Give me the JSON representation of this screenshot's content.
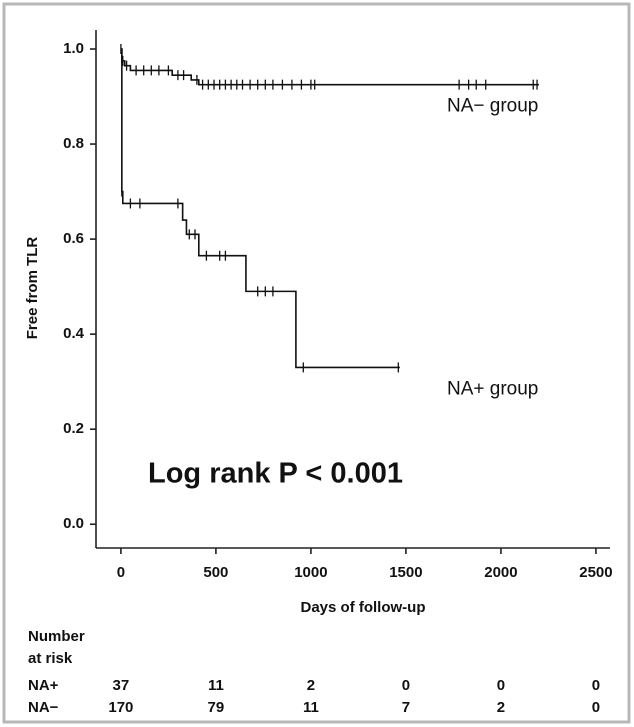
{
  "chart_data": {
    "type": "step",
    "xlabel": "Days of follow-up",
    "ylabel": "Free from TLR",
    "xlim": [
      -131,
      2574
    ],
    "xticks": [
      0,
      500,
      1000,
      1500,
      2000,
      2500
    ],
    "ylim": [
      -0.05,
      1.04
    ],
    "yticks": [
      {
        "value": 0,
        "label": "0.0"
      },
      0.2,
      0.4,
      0.6,
      0.8,
      {
        "value": 1,
        "label": "1.0"
      }
    ],
    "series": [
      {
        "name": "NA− group",
        "color": "#111111",
        "x": [
          0,
          5,
          20,
          50,
          270,
          370,
          410,
          2200
        ],
        "values": [
          1.0,
          0.975,
          0.965,
          0.955,
          0.945,
          0.935,
          0.925,
          0.925
        ],
        "censor_x": [
          0,
          10,
          30,
          80,
          120,
          160,
          200,
          250,
          300,
          330,
          400,
          430,
          460,
          490,
          520,
          550,
          580,
          610,
          640,
          680,
          720,
          760,
          800,
          850,
          900,
          950,
          1000,
          1020,
          1780,
          1830,
          1870,
          1920,
          2170,
          2190
        ],
        "censor_values": [
          1.0,
          0.975,
          0.965,
          0.955,
          0.955,
          0.955,
          0.955,
          0.955,
          0.945,
          0.945,
          0.935,
          0.925,
          0.925,
          0.925,
          0.925,
          0.925,
          0.925,
          0.925,
          0.925,
          0.925,
          0.925,
          0.925,
          0.925,
          0.925,
          0.925,
          0.925,
          0.925,
          0.925,
          0.925,
          0.925,
          0.925,
          0.925,
          0.925,
          0.925
        ]
      },
      {
        "name": "NA+ group",
        "color": "#111111",
        "x": [
          0,
          5,
          10,
          325,
          345,
          410,
          658,
          921,
          1468
        ],
        "values": [
          1.0,
          0.7,
          0.675,
          0.64,
          0.61,
          0.565,
          0.49,
          0.33,
          0.33
        ],
        "censor_x": [
          5,
          50,
          100,
          300,
          360,
          390,
          450,
          520,
          550,
          720,
          760,
          800,
          960,
          1460
        ],
        "censor_values": [
          0.7,
          0.675,
          0.675,
          0.675,
          0.61,
          0.61,
          0.565,
          0.565,
          0.565,
          0.49,
          0.49,
          0.49,
          0.33,
          0.33
        ]
      }
    ],
    "annotation": "Log rank P < 0.001",
    "risk_table": {
      "title": [
        "Number",
        "at risk"
      ],
      "rows": [
        {
          "label": "NA+",
          "counts": [
            "37",
            "11",
            "2",
            "0",
            "0",
            "0"
          ]
        },
        {
          "label": "NA−",
          "counts": [
            "170",
            "79",
            "11",
            "7",
            "2",
            "0"
          ]
        }
      ]
    }
  }
}
